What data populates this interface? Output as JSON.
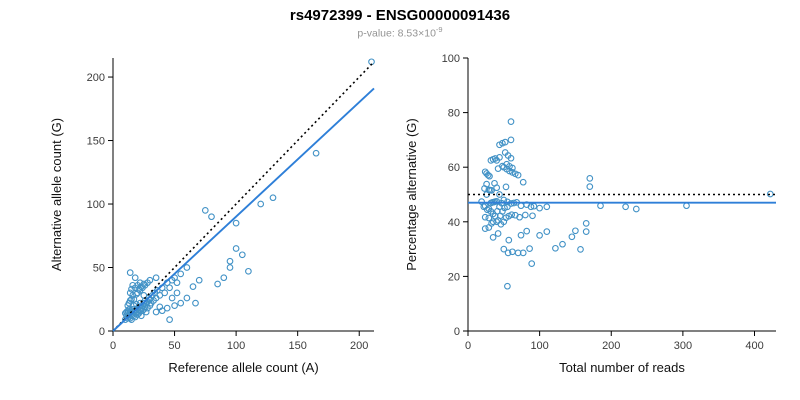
{
  "header": {
    "title": "rs4972399 - ENSG00000091436",
    "subtitle_prefix": "p-value: 8.53×10",
    "subtitle_exponent": "-9"
  },
  "colors": {
    "point": "#4292C6",
    "fit_line": "#2E7FD8",
    "reference_line": "#000000",
    "axis": "#000000"
  },
  "chart_data": [
    {
      "type": "scatter",
      "title": "",
      "xlabel": "Reference allele count (A)",
      "ylabel": "Alternative allele count (G)",
      "xlim": [
        0,
        212
      ],
      "ylim": [
        0,
        215
      ],
      "xticks": [
        0,
        50,
        100,
        150,
        200
      ],
      "yticks": [
        0,
        50,
        100,
        150,
        200
      ],
      "grid": false,
      "legend": false,
      "points": [
        [
          10,
          9
        ],
        [
          11,
          12
        ],
        [
          12,
          10
        ],
        [
          12,
          14
        ],
        [
          13,
          11
        ],
        [
          13,
          13
        ],
        [
          14,
          10
        ],
        [
          14,
          15
        ],
        [
          15,
          12
        ],
        [
          15,
          16
        ],
        [
          15,
          9
        ],
        [
          16,
          13
        ],
        [
          16,
          17
        ],
        [
          17,
          12
        ],
        [
          17,
          15
        ],
        [
          17,
          20
        ],
        [
          18,
          14
        ],
        [
          18,
          16
        ],
        [
          18,
          11
        ],
        [
          19,
          17
        ],
        [
          19,
          21
        ],
        [
          20,
          13
        ],
        [
          20,
          18
        ],
        [
          20,
          15
        ],
        [
          21,
          19
        ],
        [
          21,
          14
        ],
        [
          22,
          16
        ],
        [
          22,
          22
        ],
        [
          23,
          18
        ],
        [
          23,
          12
        ],
        [
          24,
          20
        ],
        [
          24,
          16
        ],
        [
          25,
          22
        ],
        [
          25,
          17
        ],
        [
          25,
          28
        ],
        [
          26,
          19
        ],
        [
          26,
          24
        ],
        [
          27,
          21
        ],
        [
          27,
          15
        ],
        [
          28,
          23
        ],
        [
          28,
          18
        ],
        [
          29,
          26
        ],
        [
          30,
          20
        ],
        [
          30,
          25
        ],
        [
          31,
          22
        ],
        [
          32,
          28
        ],
        [
          33,
          24
        ],
        [
          34,
          30
        ],
        [
          35,
          26
        ],
        [
          36,
          32
        ],
        [
          38,
          28
        ],
        [
          40,
          34
        ],
        [
          42,
          30
        ],
        [
          44,
          38
        ],
        [
          46,
          34
        ],
        [
          48,
          40
        ],
        [
          50,
          42
        ],
        [
          52,
          38
        ],
        [
          55,
          45
        ],
        [
          60,
          50
        ],
        [
          12,
          20
        ],
        [
          13,
          22
        ],
        [
          14,
          24
        ],
        [
          15,
          25
        ],
        [
          16,
          28
        ],
        [
          14,
          30
        ],
        [
          15,
          33
        ],
        [
          16,
          36
        ],
        [
          18,
          34
        ],
        [
          20,
          36
        ],
        [
          14,
          46
        ],
        [
          18,
          42
        ],
        [
          22,
          38
        ],
        [
          20,
          30
        ],
        [
          22,
          32
        ],
        [
          24,
          34
        ],
        [
          26,
          36
        ],
        [
          28,
          38
        ],
        [
          17,
          25
        ],
        [
          19,
          29
        ],
        [
          21,
          33
        ],
        [
          23,
          35
        ],
        [
          25,
          37
        ],
        [
          30,
          40
        ],
        [
          35,
          42
        ],
        [
          13,
          17
        ],
        [
          11,
          15
        ],
        [
          12,
          16
        ],
        [
          10,
          14
        ],
        [
          46,
          9
        ],
        [
          40,
          16
        ],
        [
          44,
          18
        ],
        [
          50,
          20
        ],
        [
          55,
          22
        ],
        [
          60,
          26
        ],
        [
          67,
          22
        ],
        [
          35,
          15
        ],
        [
          38,
          19
        ],
        [
          48,
          26
        ],
        [
          52,
          30
        ],
        [
          65,
          35
        ],
        [
          70,
          40
        ],
        [
          90,
          42
        ],
        [
          95,
          50
        ],
        [
          105,
          60
        ],
        [
          85,
          37
        ],
        [
          100,
          65
        ],
        [
          110,
          47
        ],
        [
          95,
          55
        ],
        [
          75,
          95
        ],
        [
          80,
          90
        ],
        [
          100,
          85
        ],
        [
          130,
          105
        ],
        [
          165,
          140
        ],
        [
          210,
          212
        ],
        [
          120,
          100
        ]
      ],
      "lines": [
        {
          "name": "identity",
          "style": "dotted",
          "color": "#000000",
          "x1": 0,
          "y1": 0,
          "x2": 212,
          "y2": 212
        },
        {
          "name": "fit",
          "style": "solid",
          "color": "#2E7FD8",
          "x1": 0,
          "y1": 0,
          "x2": 212,
          "y2": 191
        }
      ]
    },
    {
      "type": "scatter",
      "title": "",
      "xlabel": "Total number of reads",
      "ylabel": "Percentage alternative (G)",
      "xlim": [
        0,
        430
      ],
      "ylim": [
        0,
        100
      ],
      "xticks": [
        0,
        100,
        200,
        300,
        400
      ],
      "yticks": [
        0,
        20,
        40,
        60,
        80,
        100
      ],
      "grid": false,
      "legend": false,
      "points": [
        [
          19,
          47.4
        ],
        [
          23,
          52.2
        ],
        [
          22,
          45.5
        ],
        [
          26,
          53.8
        ],
        [
          24,
          45.8
        ],
        [
          26,
          50
        ],
        [
          24,
          41.7
        ],
        [
          29,
          51.7
        ],
        [
          27,
          44.4
        ],
        [
          31,
          51.6
        ],
        [
          24,
          37.5
        ],
        [
          29,
          44.8
        ],
        [
          33,
          51.5
        ],
        [
          29,
          41.4
        ],
        [
          32,
          46.9
        ],
        [
          37,
          54.1
        ],
        [
          32,
          43.8
        ],
        [
          34,
          47.1
        ],
        [
          29,
          37.9
        ],
        [
          36,
          47.2
        ],
        [
          40,
          52.5
        ],
        [
          33,
          39.4
        ],
        [
          38,
          47.4
        ],
        [
          35,
          42.9
        ],
        [
          40,
          47.5
        ],
        [
          35,
          40
        ],
        [
          38,
          42.1
        ],
        [
          44,
          50
        ],
        [
          41,
          43.9
        ],
        [
          35,
          34.3
        ],
        [
          44,
          45.5
        ],
        [
          40,
          40
        ],
        [
          47,
          46.8
        ],
        [
          42,
          40.5
        ],
        [
          53,
          52.8
        ],
        [
          45,
          42.2
        ],
        [
          50,
          48
        ],
        [
          48,
          43.8
        ],
        [
          42,
          35.7
        ],
        [
          51,
          45.1
        ],
        [
          46,
          39.1
        ],
        [
          55,
          47.3
        ],
        [
          50,
          40
        ],
        [
          55,
          45.5
        ],
        [
          53,
          41.5
        ],
        [
          60,
          46.7
        ],
        [
          57,
          42.1
        ],
        [
          64,
          46.9
        ],
        [
          61,
          42.6
        ],
        [
          68,
          47.1
        ],
        [
          66,
          42.4
        ],
        [
          74,
          45.9
        ],
        [
          72,
          41.7
        ],
        [
          82,
          46.3
        ],
        [
          80,
          42.5
        ],
        [
          88,
          45.5
        ],
        [
          92,
          45.7
        ],
        [
          90,
          42.2
        ],
        [
          100,
          45
        ],
        [
          110,
          45.5
        ],
        [
          32,
          62.5
        ],
        [
          35,
          62.9
        ],
        [
          38,
          63.2
        ],
        [
          40,
          62.5
        ],
        [
          44,
          63.6
        ],
        [
          44,
          68.2
        ],
        [
          48,
          68.8
        ],
        [
          52,
          69.2
        ],
        [
          52,
          65.4
        ],
        [
          56,
          64.3
        ],
        [
          60,
          76.7
        ],
        [
          60,
          70
        ],
        [
          60,
          63.3
        ],
        [
          50,
          60
        ],
        [
          54,
          59.3
        ],
        [
          58,
          58.6
        ],
        [
          62,
          58.1
        ],
        [
          66,
          57.6
        ],
        [
          42,
          59.5
        ],
        [
          48,
          60.4
        ],
        [
          54,
          61.1
        ],
        [
          58,
          60.3
        ],
        [
          62,
          59.7
        ],
        [
          70,
          57.1
        ],
        [
          77,
          54.5
        ],
        [
          30,
          56.7
        ],
        [
          26,
          57.7
        ],
        [
          28,
          57.1
        ],
        [
          24,
          58.3
        ],
        [
          55,
          16.4
        ],
        [
          56,
          28.6
        ],
        [
          62,
          29
        ],
        [
          70,
          28.6
        ],
        [
          77,
          28.6
        ],
        [
          86,
          30.2
        ],
        [
          89,
          24.7
        ],
        [
          50,
          30
        ],
        [
          57,
          33.3
        ],
        [
          74,
          35.1
        ],
        [
          82,
          36.6
        ],
        [
          100,
          35
        ],
        [
          110,
          36.4
        ],
        [
          132,
          31.8
        ],
        [
          145,
          34.5
        ],
        [
          165,
          36.4
        ],
        [
          122,
          30.3
        ],
        [
          165,
          39.4
        ],
        [
          157,
          29.9
        ],
        [
          150,
          36.7
        ],
        [
          170,
          55.9
        ],
        [
          170,
          52.9
        ],
        [
          185,
          45.9
        ],
        [
          235,
          44.7
        ],
        [
          305,
          45.9
        ],
        [
          422,
          50.2
        ],
        [
          220,
          45.5
        ]
      ],
      "lines": [
        {
          "name": "null-fifty",
          "style": "dotted",
          "color": "#000000",
          "x1": 0,
          "y1": 50,
          "x2": 430,
          "y2": 50
        },
        {
          "name": "fit",
          "style": "solid",
          "color": "#2E7FD8",
          "x1": 0,
          "y1": 47,
          "x2": 430,
          "y2": 47
        }
      ]
    }
  ]
}
